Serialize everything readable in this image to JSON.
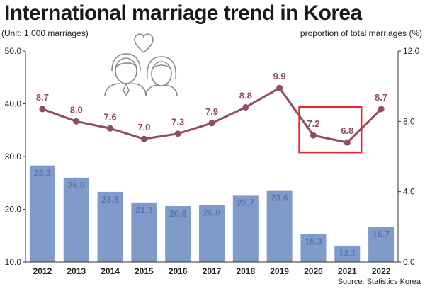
{
  "title": "International marriage trend in Korea",
  "unit_left": "(Unit: 1,000 marriages)",
  "unit_right": "proportion of total marriages (%)",
  "source": "Source: Statistics Korea",
  "colors": {
    "bar": "#7f9bc9",
    "bar_label": "#5b76ad",
    "line": "#8f4d61",
    "highlight": "#e8262b"
  },
  "icons": [
    "heart-icon",
    "couple-icon"
  ],
  "chart_data": {
    "type": "bar+line",
    "categories": [
      "2012",
      "2013",
      "2014",
      "2015",
      "2016",
      "2017",
      "2018",
      "2019",
      "2020",
      "2021",
      "2022"
    ],
    "series": [
      {
        "axis": "left",
        "values": [
          28.3,
          26.0,
          23.3,
          21.3,
          20.6,
          20.8,
          22.7,
          23.6,
          15.3,
          13.1,
          16.7
        ],
        "labels": [
          "28.3",
          "26.0",
          "23.3",
          "21.3",
          "20.6",
          "20.8",
          "22.7",
          "23.6",
          "15.3",
          "13.1",
          "16.7"
        ]
      },
      {
        "axis": "right",
        "values": [
          8.7,
          8.0,
          7.6,
          7.0,
          7.3,
          7.9,
          8.8,
          9.9,
          7.2,
          6.8,
          8.7
        ],
        "labels": [
          "8.7",
          "8.0",
          "7.6",
          "7.0",
          "7.3",
          "7.9",
          "8.8",
          "9.9",
          "7.2",
          "6.8",
          "8.7"
        ]
      }
    ],
    "y_left": {
      "range": [
        10,
        50
      ],
      "ticks": [
        "10.0",
        "20.0",
        "30.0",
        "40.0",
        "50.0"
      ]
    },
    "y_right": {
      "range": [
        0,
        12
      ],
      "ticks": [
        "0.0",
        "4.0",
        "8.0",
        "12.0"
      ]
    },
    "highlight": [
      "2020",
      "2021"
    ],
    "grid": false
  }
}
